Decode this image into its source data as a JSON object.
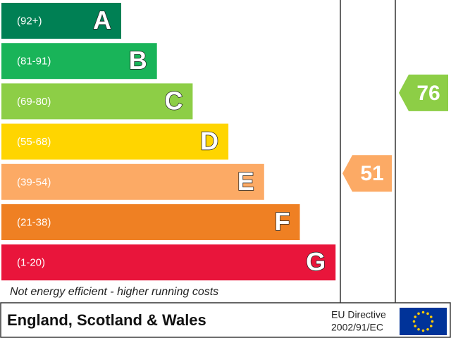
{
  "chart_data": {
    "type": "epc",
    "bands": [
      {
        "range": "(92+)",
        "letter": "A",
        "color": "#008054"
      },
      {
        "range": "(81-91)",
        "letter": "B",
        "color": "#19b459"
      },
      {
        "range": "(69-80)",
        "letter": "C",
        "color": "#8dce46"
      },
      {
        "range": "(55-68)",
        "letter": "D",
        "color": "#ffd500"
      },
      {
        "range": "(39-54)",
        "letter": "E",
        "color": "#fcaa65"
      },
      {
        "range": "(21-38)",
        "letter": "F",
        "color": "#ef8023"
      },
      {
        "range": "(1-20)",
        "letter": "G",
        "color": "#e9153b"
      }
    ],
    "current": 51,
    "potential": 76,
    "footnote": "Not energy efficient - higher running costs",
    "region": "England, Scotland & Wales",
    "directive": [
      "EU Directive",
      "2002/91/EC"
    ]
  }
}
